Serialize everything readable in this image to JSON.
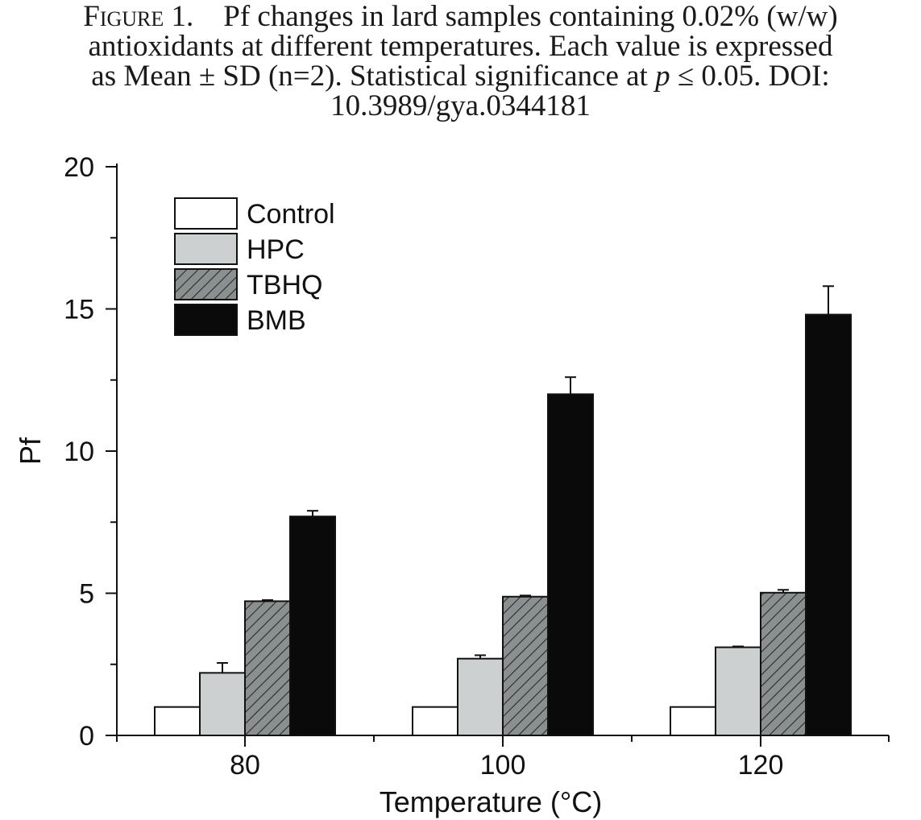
{
  "caption": {
    "figure_label": "Figure 1.",
    "line1": "Pf changes in lard samples containing 0.02% (w/w)",
    "line2": "antioxidants at different temperatures. Each value is expressed",
    "line3_before": "as Mean ± SD (n=2). Statistical significance at ",
    "line3_p": "p",
    "line3_after": " ≤ 0.05. DOI:",
    "line4": "10.3989/gya.0344181"
  },
  "chart_data": {
    "type": "bar",
    "xlabel": "Temperature (°C)",
    "ylabel": "Pf",
    "categories": [
      "80",
      "100",
      "120"
    ],
    "ylim": [
      0,
      20
    ],
    "yticks": [
      0,
      5,
      10,
      15,
      20
    ],
    "grid": false,
    "legend_position": "top-left",
    "series": [
      {
        "name": "Control",
        "values": [
          1.0,
          1.0,
          1.0
        ],
        "errors": [
          0,
          0,
          0
        ],
        "fill": "#ffffff",
        "pattern": "none"
      },
      {
        "name": "HPC",
        "values": [
          2.2,
          2.7,
          3.1
        ],
        "errors": [
          0.35,
          0.12,
          0.03
        ],
        "fill": "#ccd0d0",
        "pattern": "none"
      },
      {
        "name": "TBHQ",
        "values": [
          4.72,
          4.88,
          5.02
        ],
        "errors": [
          0.04,
          0.04,
          0.1
        ],
        "fill": "#8a8f8f",
        "pattern": "hatch"
      },
      {
        "name": "BMB",
        "values": [
          7.7,
          12.0,
          14.8
        ],
        "errors": [
          0.2,
          0.6,
          1.0
        ],
        "fill": "#0a0a0a",
        "pattern": "none"
      }
    ]
  }
}
